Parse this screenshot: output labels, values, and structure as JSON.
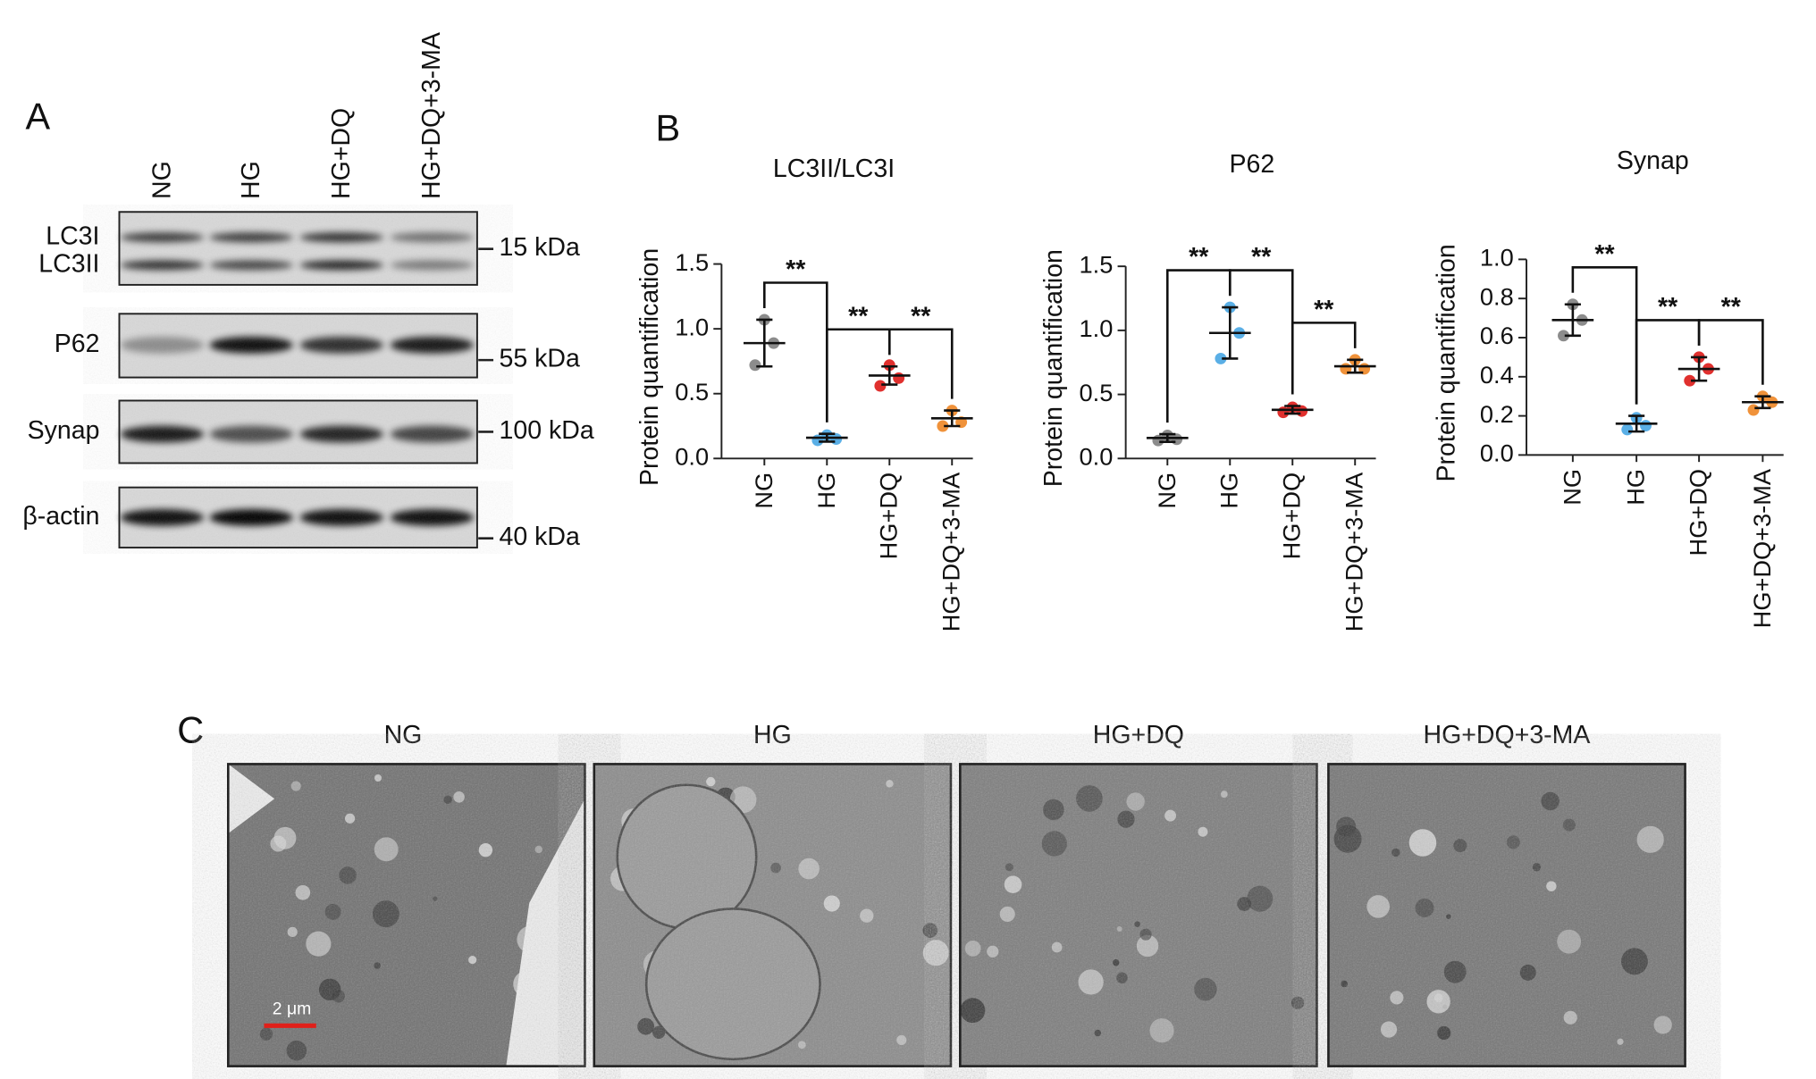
{
  "panel_labels": [
    "A",
    "B",
    "C"
  ],
  "blot": {
    "lanes": [
      "NG",
      "HG",
      "HG+DQ",
      "HG+DQ+3-MA"
    ],
    "rows": [
      "LC3I",
      "LC3II",
      "P62",
      "Synap",
      "β-actin"
    ],
    "markers": [
      "15 kDa",
      "55 kDa",
      "100 kDa",
      "40 kDa"
    ]
  },
  "chart_data": [
    {
      "type": "dot",
      "title": "LC3II/LC3I",
      "ylabel": "Protein quantification",
      "categories": [
        "NG",
        "HG",
        "HG+DQ",
        "HG+DQ+3-MA"
      ],
      "colors": [
        "#8c8c8c",
        "#5aafe6",
        "#e0302e",
        "#f0923a"
      ],
      "points": [
        [
          1.07,
          0.89,
          0.72
        ],
        [
          0.18,
          0.15,
          0.14
        ],
        [
          0.72,
          0.62,
          0.56
        ],
        [
          0.37,
          0.28,
          0.25
        ]
      ],
      "means": [
        0.89,
        0.16,
        0.64,
        0.31
      ],
      "sds": [
        0.18,
        0.03,
        0.07,
        0.06
      ],
      "ylim": [
        0,
        1.5
      ],
      "yticks": [
        {
          "value": 0,
          "label": "0.0"
        },
        {
          "value": 0.5,
          "label": "0.5"
        },
        {
          "value": 1,
          "label": "1.0"
        },
        {
          "value": 1.5,
          "label": "1.5"
        }
      ],
      "significance": [
        "**",
        "**",
        "**"
      ]
    },
    {
      "type": "dot",
      "title": "P62",
      "ylabel": "Protein quantification",
      "categories": [
        "NG",
        "HG",
        "HG+DQ",
        "HG+DQ+3-MA"
      ],
      "colors": [
        "#8c8c8c",
        "#5aafe6",
        "#e0302e",
        "#f0923a"
      ],
      "points": [
        [
          0.18,
          0.15,
          0.14
        ],
        [
          1.18,
          0.98,
          0.78
        ],
        [
          0.4,
          0.37,
          0.36
        ],
        [
          0.77,
          0.7,
          0.7
        ]
      ],
      "means": [
        0.16,
        0.98,
        0.38,
        0.72
      ],
      "sds": [
        0.03,
        0.2,
        0.03,
        0.05
      ],
      "ylim": [
        0,
        1.5
      ],
      "yticks": [
        {
          "value": 0,
          "label": "0.0"
        },
        {
          "value": 0.5,
          "label": "0.5"
        },
        {
          "value": 1,
          "label": "1.0"
        },
        {
          "value": 1.5,
          "label": "1.5"
        }
      ],
      "significance": [
        "**",
        "**",
        "**"
      ]
    },
    {
      "type": "dot",
      "title": "Synap",
      "ylabel": "Protein quantification",
      "categories": [
        "NG",
        "HG",
        "HG+DQ",
        "HG+DQ+3-MA"
      ],
      "colors": [
        "#8c8c8c",
        "#5aafe6",
        "#e0302e",
        "#f0923a"
      ],
      "points": [
        [
          0.77,
          0.69,
          0.61
        ],
        [
          0.19,
          0.15,
          0.13
        ],
        [
          0.5,
          0.44,
          0.38
        ],
        [
          0.3,
          0.27,
          0.23
        ]
      ],
      "means": [
        0.69,
        0.16,
        0.44,
        0.27
      ],
      "sds": [
        0.08,
        0.04,
        0.06,
        0.03
      ],
      "ylim": [
        0,
        1.0
      ],
      "yticks": [
        {
          "value": 0,
          "label": "0.0"
        },
        {
          "value": 0.2,
          "label": "0.2"
        },
        {
          "value": 0.4,
          "label": "0.4"
        },
        {
          "value": 0.6,
          "label": "0.6"
        },
        {
          "value": 0.8,
          "label": "0.8"
        },
        {
          "value": 1,
          "label": "1.0"
        }
      ],
      "significance": [
        "**",
        "**",
        "**"
      ]
    }
  ],
  "micrographs": {
    "titles": [
      "NG",
      "HG",
      "HG+DQ",
      "HG+DQ+3-MA"
    ],
    "scale_bar": "2 μm"
  }
}
